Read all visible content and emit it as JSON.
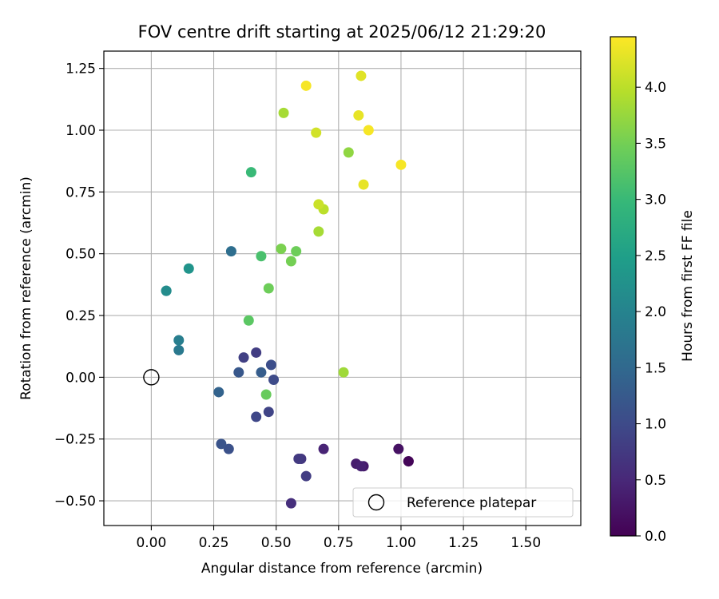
{
  "chart_data": {
    "type": "scatter",
    "title": "FOV centre drift starting at 2025/06/12 21:29:20",
    "xlabel": "Angular distance from reference (arcmin)",
    "ylabel": "Rotation from reference (arcmin)",
    "xlim": [
      -0.19,
      1.72
    ],
    "ylim": [
      -0.6,
      1.32
    ],
    "xticks": [
      0.0,
      0.25,
      0.5,
      0.75,
      1.0,
      1.25,
      1.5
    ],
    "xtick_labels": [
      "0.00",
      "0.25",
      "0.50",
      "0.75",
      "1.00",
      "1.25",
      "1.50"
    ],
    "yticks": [
      -0.5,
      -0.25,
      0.0,
      0.25,
      0.5,
      0.75,
      1.0,
      1.25
    ],
    "ytick_labels": [
      "−0.50",
      "−0.25",
      "0.00",
      "0.25",
      "0.50",
      "0.75",
      "1.00",
      "1.25"
    ],
    "grid": true,
    "colormap": "viridis",
    "colormap_stops": [
      "#440154",
      "#482878",
      "#3e4a89",
      "#31688e",
      "#26828e",
      "#1f9e89",
      "#35b779",
      "#6ece58",
      "#b5de2b",
      "#fde725"
    ],
    "colorbar": {
      "label": "Hours from first FF file",
      "range": [
        0.0,
        4.45
      ],
      "ticks": [
        0.0,
        0.5,
        1.0,
        1.5,
        2.0,
        2.5,
        3.0,
        3.5,
        4.0
      ],
      "tick_labels": [
        "0.0",
        "0.5",
        "1.0",
        "1.5",
        "2.0",
        "2.5",
        "3.0",
        "3.5",
        "4.0"
      ]
    },
    "legend": {
      "position": "lower-right",
      "entries": [
        "Reference platepar"
      ]
    },
    "reference_point": {
      "x": 0.0,
      "y": 0.0
    },
    "points": [
      {
        "x": 1.03,
        "y": -0.34,
        "c": 0.0
      },
      {
        "x": 1.03,
        "y": -0.34,
        "c": 0.05
      },
      {
        "x": 0.99,
        "y": -0.29,
        "c": 0.2
      },
      {
        "x": 0.85,
        "y": -0.36,
        "c": 0.3
      },
      {
        "x": 0.82,
        "y": -0.35,
        "c": 0.35
      },
      {
        "x": 0.84,
        "y": -0.36,
        "c": 0.4
      },
      {
        "x": 0.69,
        "y": -0.29,
        "c": 0.45
      },
      {
        "x": 0.56,
        "y": -0.51,
        "c": 0.6
      },
      {
        "x": 0.6,
        "y": -0.33,
        "c": 0.7
      },
      {
        "x": 0.59,
        "y": -0.33,
        "c": 0.75
      },
      {
        "x": 0.62,
        "y": -0.4,
        "c": 0.8
      },
      {
        "x": 0.42,
        "y": 0.1,
        "c": 0.8
      },
      {
        "x": 0.37,
        "y": 0.08,
        "c": 0.85
      },
      {
        "x": 0.47,
        "y": -0.14,
        "c": 0.9
      },
      {
        "x": 0.42,
        "y": -0.16,
        "c": 0.95
      },
      {
        "x": 0.49,
        "y": -0.01,
        "c": 1.0
      },
      {
        "x": 0.48,
        "y": 0.05,
        "c": 1.05
      },
      {
        "x": 0.31,
        "y": -0.29,
        "c": 1.1
      },
      {
        "x": 0.28,
        "y": -0.27,
        "c": 1.15
      },
      {
        "x": 0.35,
        "y": 0.02,
        "c": 1.2
      },
      {
        "x": 0.44,
        "y": 0.02,
        "c": 1.3
      },
      {
        "x": 0.27,
        "y": -0.06,
        "c": 1.4
      },
      {
        "x": 0.32,
        "y": 0.51,
        "c": 1.6
      },
      {
        "x": 0.11,
        "y": 0.11,
        "c": 1.8
      },
      {
        "x": 0.11,
        "y": 0.15,
        "c": 1.9
      },
      {
        "x": 0.06,
        "y": 0.35,
        "c": 2.1
      },
      {
        "x": 0.06,
        "y": 0.35,
        "c": 2.15
      },
      {
        "x": 0.15,
        "y": 0.44,
        "c": 2.3
      },
      {
        "x": 0.4,
        "y": 0.83,
        "c": 3.0
      },
      {
        "x": 0.44,
        "y": 0.49,
        "c": 3.15
      },
      {
        "x": 0.39,
        "y": 0.23,
        "c": 3.3
      },
      {
        "x": 0.46,
        "y": -0.07,
        "c": 3.4
      },
      {
        "x": 0.47,
        "y": 0.36,
        "c": 3.45
      },
      {
        "x": 0.52,
        "y": 0.52,
        "c": 3.55
      },
      {
        "x": 0.56,
        "y": 0.47,
        "c": 3.5
      },
      {
        "x": 0.58,
        "y": 0.51,
        "c": 3.45
      },
      {
        "x": 0.77,
        "y": 0.02,
        "c": 3.8
      },
      {
        "x": 0.79,
        "y": 0.91,
        "c": 3.7
      },
      {
        "x": 0.53,
        "y": 1.07,
        "c": 3.85
      },
      {
        "x": 0.67,
        "y": 0.59,
        "c": 3.85
      },
      {
        "x": 0.69,
        "y": 0.68,
        "c": 4.0
      },
      {
        "x": 0.67,
        "y": 0.7,
        "c": 4.1
      },
      {
        "x": 0.66,
        "y": 0.99,
        "c": 4.15
      },
      {
        "x": 0.83,
        "y": 1.06,
        "c": 4.3
      },
      {
        "x": 0.84,
        "y": 1.22,
        "c": 4.25
      },
      {
        "x": 0.85,
        "y": 0.78,
        "c": 4.3
      },
      {
        "x": 0.87,
        "y": 1.0,
        "c": 4.4
      },
      {
        "x": 0.62,
        "y": 1.18,
        "c": 4.4
      },
      {
        "x": 1.0,
        "y": 0.86,
        "c": 4.4
      }
    ]
  }
}
